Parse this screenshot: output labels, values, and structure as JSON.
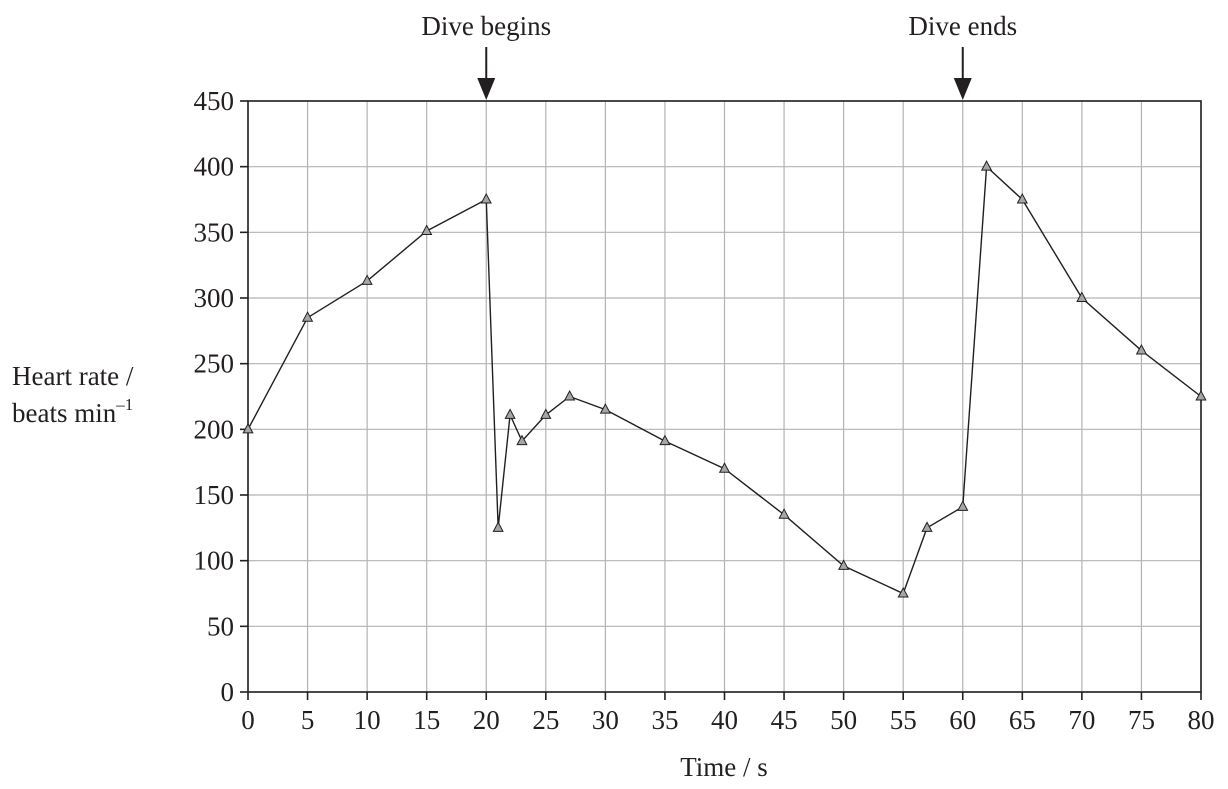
{
  "chart_data": {
    "type": "line",
    "title": "",
    "xlabel": "Time / s",
    "ylabel": [
      "Heart rate /",
      "beats min",
      "–1"
    ],
    "xlim": [
      0,
      80
    ],
    "ylim": [
      0,
      450
    ],
    "xticks": [
      0,
      5,
      10,
      15,
      20,
      25,
      30,
      35,
      40,
      45,
      50,
      55,
      60,
      65,
      70,
      75,
      80
    ],
    "yticks": [
      0,
      50,
      100,
      150,
      200,
      250,
      300,
      350,
      400,
      450
    ],
    "grid": true,
    "marker": "triangle",
    "series": [
      {
        "x": [
          0,
          5,
          10,
          15,
          20,
          21,
          22,
          23,
          25,
          27,
          30,
          35,
          40,
          45,
          50,
          55,
          57,
          60,
          62,
          65,
          70,
          75,
          80
        ],
        "y": [
          200,
          285,
          313,
          351,
          375,
          125,
          211,
          191,
          211,
          225,
          215,
          191,
          170,
          135,
          96,
          75,
          125,
          141,
          400,
          375,
          300,
          260,
          225
        ]
      }
    ],
    "annotations": [
      {
        "text": "Dive begins",
        "x": 20
      },
      {
        "text": "Dive ends",
        "x": 60
      }
    ]
  }
}
